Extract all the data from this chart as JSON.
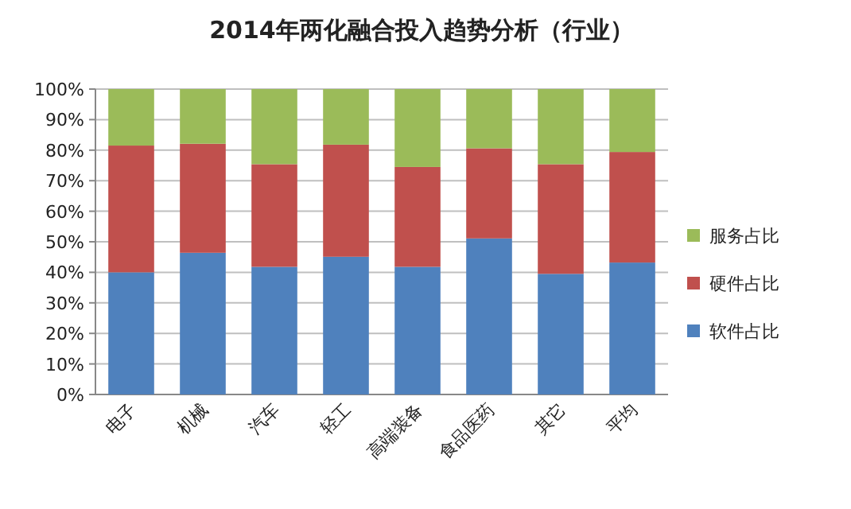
{
  "chart_data": {
    "type": "bar",
    "title": "2014年两化融合投入趋势分析（行业）",
    "stacked": true,
    "categories": [
      "电子",
      "机械",
      "汽车",
      "轻工",
      "高端装备",
      "食品医药",
      "其它",
      "平均"
    ],
    "series": [
      {
        "name": "软件占比",
        "color": "#4f81bd",
        "values": [
          40,
          46.4,
          41.8,
          45.1,
          41.8,
          51.1,
          39.5,
          43.2
        ]
      },
      {
        "name": "硬件占比",
        "color": "#c0504d",
        "values": [
          41.5,
          35.7,
          33.6,
          36.7,
          32.7,
          29.5,
          35.9,
          36.2
        ]
      },
      {
        "name": "服务占比",
        "color": "#9bbb59",
        "values": [
          18.5,
          17.9,
          24.6,
          18.2,
          25.5,
          19.4,
          24.6,
          20.6
        ]
      }
    ],
    "ylim": [
      0,
      100
    ],
    "yticks": [
      {
        "value": 0,
        "label": "0%"
      },
      {
        "value": 10,
        "label": "10%"
      },
      {
        "value": 20,
        "label": "20%"
      },
      {
        "value": 30,
        "label": "30%"
      },
      {
        "value": 40,
        "label": "40%"
      },
      {
        "value": 50,
        "label": "50%"
      },
      {
        "value": 60,
        "label": "60%"
      },
      {
        "value": 70,
        "label": "70%"
      },
      {
        "value": 80,
        "label": "80%"
      },
      {
        "value": 90,
        "label": "90%"
      },
      {
        "value": 100,
        "label": "100%"
      }
    ],
    "grid": "y",
    "legend": "right"
  }
}
